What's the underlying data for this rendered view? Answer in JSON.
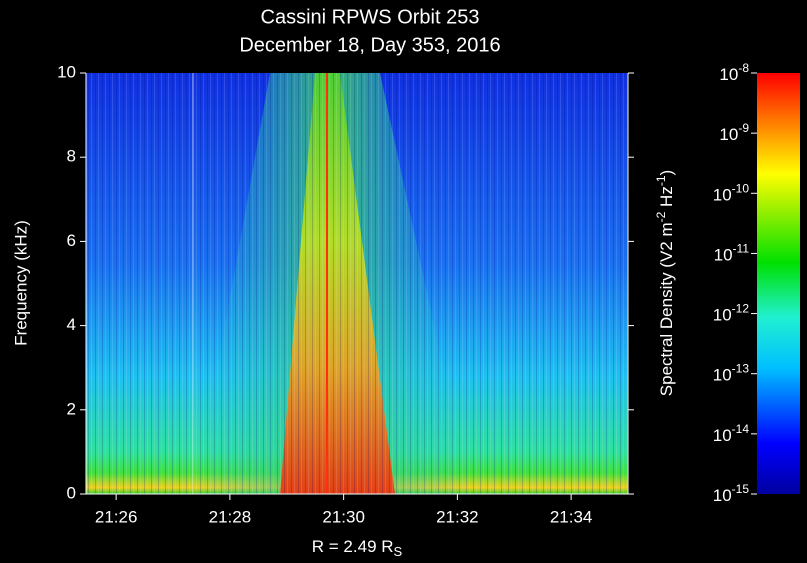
{
  "chart_data": {
    "type": "spectrogram",
    "title": "Cassini RPWS Orbit 253",
    "subtitle": "December 18, Day 353, 2016",
    "x_label": [
      "R = 2.49 R",
      "S"
    ],
    "y_label": "Frequency (kHz)",
    "xlim": [
      1285.47,
      1295
    ],
    "xticks": [
      {
        "value": 1286,
        "label": "21:26"
      },
      {
        "value": 1288,
        "label": "21:28"
      },
      {
        "value": 1290,
        "label": "21:30"
      },
      {
        "value": 1292,
        "label": "21:32"
      },
      {
        "value": 1294,
        "label": "21:34"
      }
    ],
    "ylim": [
      0,
      10
    ],
    "yticks": [
      0,
      2,
      4,
      6,
      8,
      10
    ],
    "colorbar": {
      "label": [
        "Spectral Density (V2 m",
        "-2",
        " Hz",
        "-1",
        ")"
      ],
      "log_scale": true,
      "lim": [
        1e-15,
        1e-08
      ],
      "ticks": [
        {
          "value": 1e-08,
          "label": {
            "base": "10",
            "exponent": "-8"
          }
        },
        {
          "value": 1e-09,
          "label": {
            "base": "10",
            "exponent": "-9"
          }
        },
        {
          "value": 1e-10,
          "label": {
            "base": "10",
            "exponent": "-10"
          }
        },
        {
          "value": 1e-11,
          "label": {
            "base": "10",
            "exponent": "-11"
          }
        },
        {
          "value": 1e-12,
          "label": {
            "base": "10",
            "exponent": "-12"
          }
        },
        {
          "value": 1e-13,
          "label": {
            "base": "10",
            "exponent": "-13"
          }
        },
        {
          "value": 1e-14,
          "label": {
            "base": "10",
            "exponent": "-14"
          }
        },
        {
          "value": 1e-15,
          "label": {
            "base": "10",
            "exponent": "-15"
          }
        }
      ]
    }
  }
}
